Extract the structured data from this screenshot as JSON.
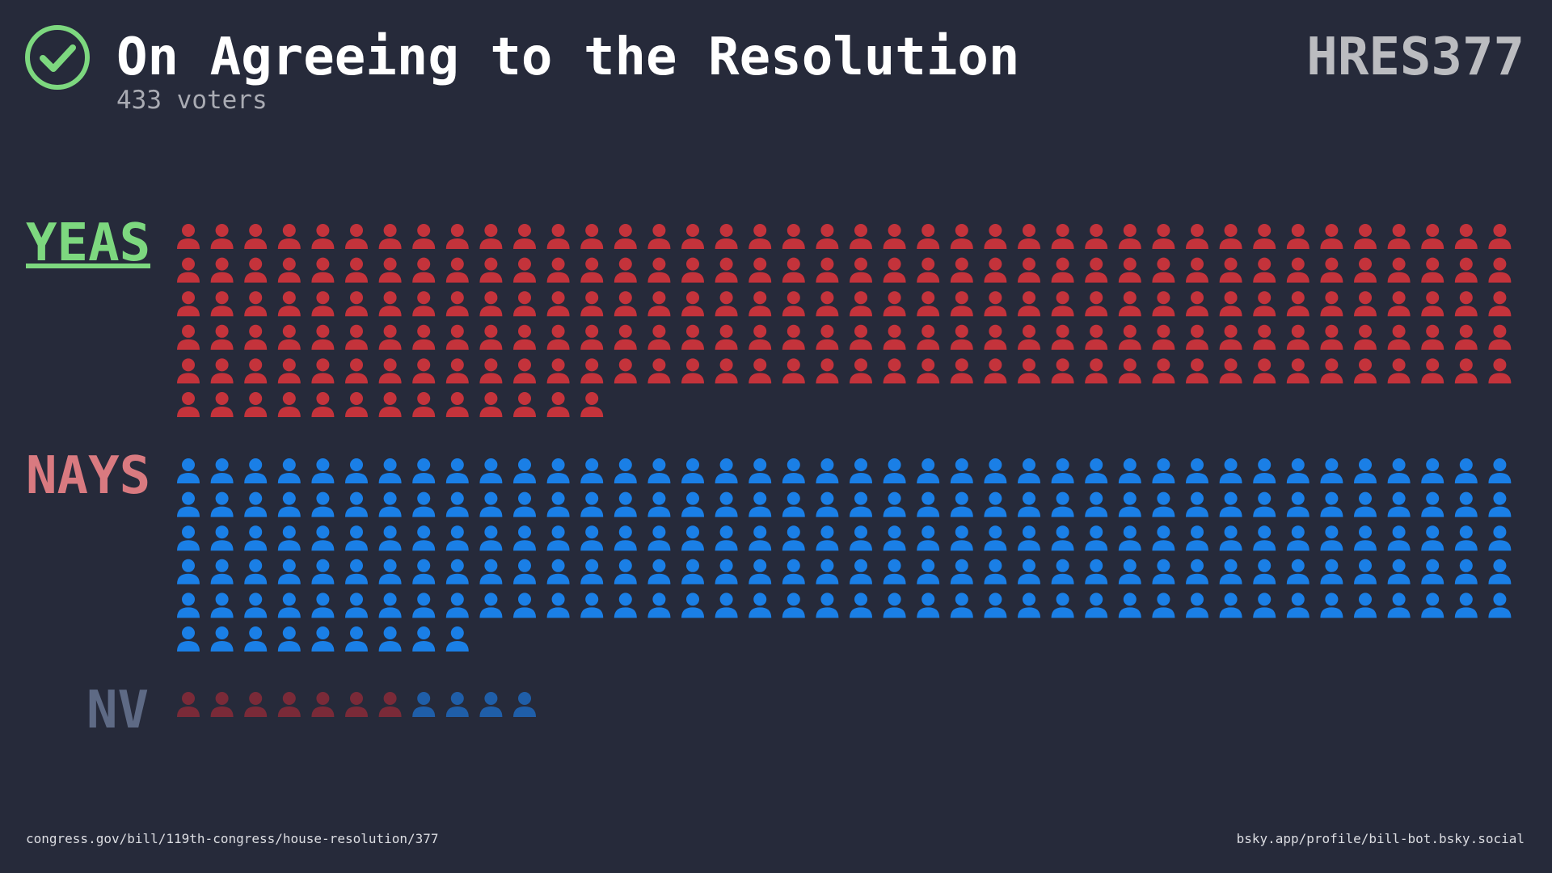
{
  "chart_data": {
    "type": "pictogram",
    "title": "On Agreeing to the Resolution",
    "subtitle": "433 voters",
    "bill": "HRES377",
    "source": "congress.gov/bill/119th-congress/house-resolution/377",
    "credit": "bsky.app/profile/bill-bot.bsky.social",
    "groups": [
      {
        "label": "YEAS",
        "label_color": "#7dd87f",
        "segments": [
          {
            "count": 213,
            "color": "#c4333b"
          }
        ]
      },
      {
        "label": "NAYS",
        "label_color": "#d97a80",
        "segments": [
          {
            "count": 209,
            "color": "#1a7fe6"
          }
        ]
      },
      {
        "label": "NV",
        "label_color": "#5e6a85",
        "segments": [
          {
            "count": 7,
            "color": "#7a2a38"
          },
          {
            "count": 4,
            "color": "#1f5ea8"
          }
        ]
      }
    ]
  }
}
